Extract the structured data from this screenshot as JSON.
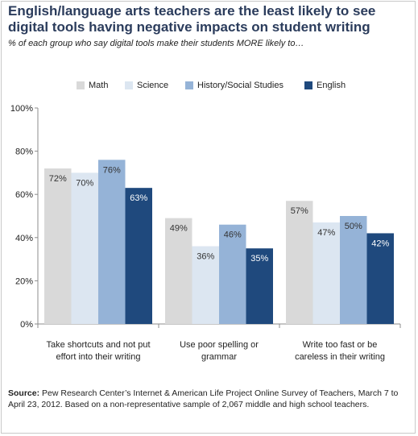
{
  "title": "English/language arts teachers are the least likely to see digital tools having negative impacts on student writing",
  "subtitle": "% of each group who say digital tools make their students MORE likely to…",
  "source_label": "Source:",
  "source_text": "Pew Research Center’s Internet & American Life Project Online Survey of Teachers, March 7 to April 23, 2012.   Based on a non-representative sample of 2,067 middle and high school teachers.",
  "chart_data": {
    "type": "bar",
    "categories": [
      [
        "Take shortcuts and not put",
        "effort into their writing"
      ],
      [
        "Use poor spelling or",
        "grammar"
      ],
      [
        "Write too fast or be",
        "careless in their writing"
      ]
    ],
    "series": [
      {
        "name": "Math",
        "color": "#d9d9d9",
        "label_color": "#333333",
        "values": [
          72,
          49,
          57
        ]
      },
      {
        "name": "Science",
        "color": "#dce6f1",
        "label_color": "#333333",
        "values": [
          70,
          36,
          47
        ]
      },
      {
        "name": "History/Social Studies",
        "color": "#95b3d7",
        "label_color": "#333333",
        "values": [
          76,
          46,
          50
        ]
      },
      {
        "name": "English",
        "color": "#1f497d",
        "label_color": "#ffffff",
        "values": [
          63,
          35,
          42
        ]
      }
    ],
    "value_suffix": "%",
    "yticks": [
      "0%",
      "20%",
      "40%",
      "60%",
      "80%",
      "100%"
    ],
    "ylim": [
      0,
      100
    ],
    "legend_position": "top",
    "grid": false
  }
}
